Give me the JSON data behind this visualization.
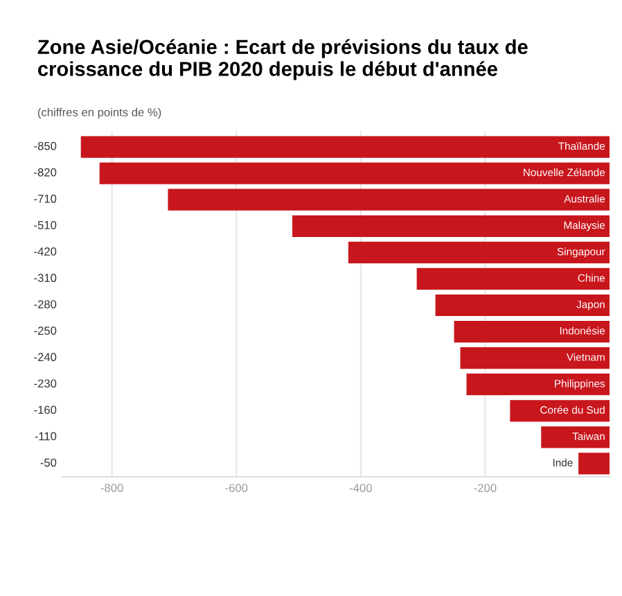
{
  "chart_data": {
    "type": "bar",
    "orientation": "horizontal",
    "title": "Zone Asie/Océanie : Ecart de prévisions du taux de croissance du PIB 2020 depuis le début d'année",
    "subtitle": "(chiffres en points de %)",
    "categories": [
      "Thaïlande",
      "Nouvelle Zélande",
      "Australie",
      "Malaysie",
      "Singapour",
      "Chine",
      "Japon",
      "Indonésie",
      "Vietnam",
      "Philippines",
      "Corée du Sud",
      "Taiwan",
      "Inde"
    ],
    "values": [
      -850,
      -820,
      -710,
      -510,
      -420,
      -310,
      -280,
      -250,
      -240,
      -230,
      -160,
      -110,
      -50
    ],
    "color": "#c8161d",
    "data_labels": true,
    "xlim": [
      -880,
      0
    ],
    "xticks": [
      -800,
      -600,
      -400,
      -200
    ],
    "grid": "x"
  }
}
